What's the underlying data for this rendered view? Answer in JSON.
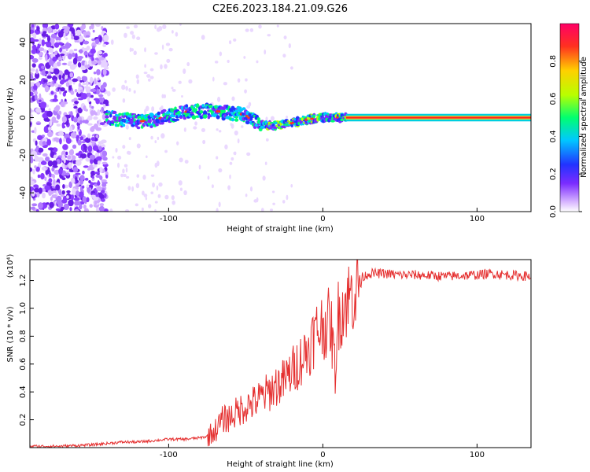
{
  "title": "C2E6.2023.184.21.09.G26",
  "chart_data": [
    {
      "type": "heatmap",
      "xlabel": "Height of straight line (km)",
      "ylabel": "Frequency (Hz)",
      "xlim": [
        -190,
        135
      ],
      "ylim": [
        -50,
        50
      ],
      "x_ticks": [
        -100,
        0,
        100
      ],
      "y_ticks": [
        -40,
        -20,
        0,
        20,
        40
      ],
      "colorbar": {
        "label": "Normalized spectral amplitude",
        "range": [
          0.0,
          1.0
        ],
        "ticks": [
          0.0,
          0.2,
          0.4,
          0.6,
          0.8
        ],
        "tick_labels": [
          "0.0",
          "0.2",
          "0.4",
          "0.6",
          "0.8"
        ]
      },
      "ridge": [
        {
          "x": -140,
          "y": 0.0
        },
        {
          "x": -130,
          "y": -1.0
        },
        {
          "x": -120,
          "y": -2.0
        },
        {
          "x": -110,
          "y": -1.5
        },
        {
          "x": -100,
          "y": 1.0
        },
        {
          "x": -90,
          "y": 3.0
        },
        {
          "x": -80,
          "y": 3.5
        },
        {
          "x": -70,
          "y": 3.5
        },
        {
          "x": -60,
          "y": 2.5
        },
        {
          "x": -50,
          "y": 1.5
        },
        {
          "x": -45,
          "y": -1.5
        },
        {
          "x": -40,
          "y": -4.0
        },
        {
          "x": -30,
          "y": -4.0
        },
        {
          "x": -20,
          "y": -3.0
        },
        {
          "x": -10,
          "y": -1.0
        },
        {
          "x": 0,
          "y": 0.0
        },
        {
          "x": 15,
          "y": 0.0
        },
        {
          "x": 135,
          "y": 0.0
        }
      ]
    },
    {
      "type": "line",
      "xlabel": "Height of straight line (km)",
      "ylabel": "SNR (10 * v/v)",
      "scale_label": "(x10⁴)",
      "xlim": [
        -190,
        135
      ],
      "ylim": [
        0,
        1.35
      ],
      "x_ticks": [
        -100,
        0,
        100
      ],
      "y_ticks": [
        0.2,
        0.4,
        0.6,
        0.8,
        1.0,
        1.2
      ],
      "color": "#e53030",
      "series": [
        {
          "values_x": [
            -190,
            -170,
            -150,
            -140,
            -130,
            -120,
            -110,
            -100,
            -90,
            -80,
            -75,
            -70,
            -65,
            -60,
            -55,
            -50,
            -45,
            -40,
            -35,
            -30,
            -25,
            -20,
            -15,
            -10,
            -5,
            0,
            5,
            8,
            10,
            15,
            20,
            25,
            30,
            40,
            50,
            60,
            80,
            100,
            110,
            120,
            135
          ],
          "values_y": [
            0.01,
            0.01,
            0.02,
            0.03,
            0.04,
            0.04,
            0.05,
            0.06,
            0.06,
            0.07,
            0.08,
            0.12,
            0.2,
            0.22,
            0.26,
            0.3,
            0.32,
            0.36,
            0.4,
            0.45,
            0.48,
            0.55,
            0.62,
            0.7,
            0.82,
            0.88,
            0.9,
            0.55,
            0.95,
            1.05,
            1.12,
            1.22,
            1.25,
            1.25,
            1.24,
            1.24,
            1.23,
            1.24,
            1.25,
            1.24,
            1.23
          ]
        }
      ]
    }
  ]
}
